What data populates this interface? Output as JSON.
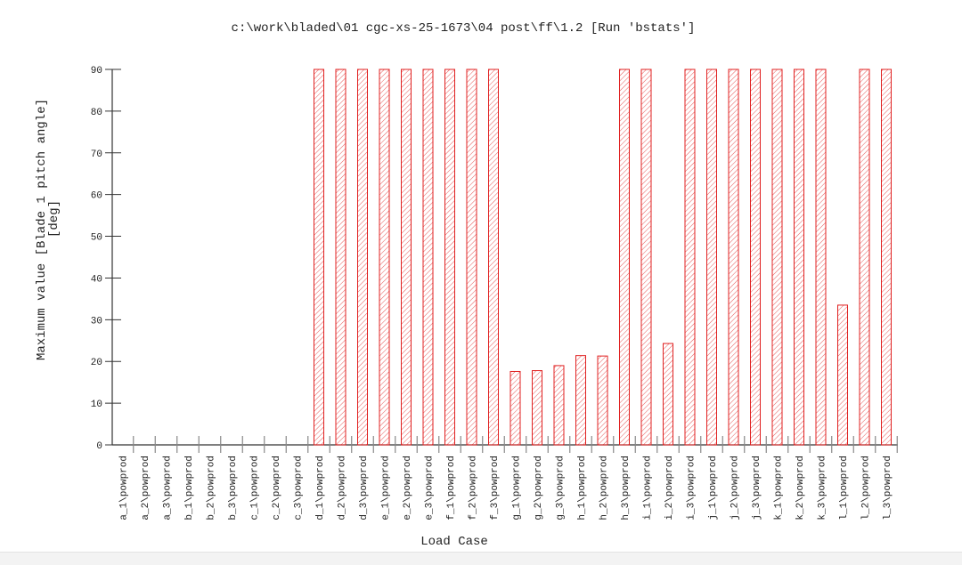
{
  "chart_data": {
    "type": "bar",
    "title": "c:\\work\\bladed\\01 cgc-xs-25-1673\\04 post\\ff\\1.2 [Run 'bstats']",
    "xlabel": "Load Case",
    "ylabel": "Maximum value [Blade 1 pitch angle]",
    "ylabel_unit": "[deg]",
    "ylim": [
      0,
      90
    ],
    "yticks": [
      0,
      10,
      20,
      30,
      40,
      50,
      60,
      70,
      80,
      90
    ],
    "grid": false,
    "bar_color": "#e02020",
    "bar_fill": "hatched",
    "categories": [
      "a_1\\powprod",
      "a_2\\powprod",
      "a_3\\powprod",
      "b_1\\powprod",
      "b_2\\powprod",
      "b_3\\powprod",
      "c_1\\powprod",
      "c_2\\powprod",
      "c_3\\powprod",
      "d_1\\powprod",
      "d_2\\powprod",
      "d_3\\powprod",
      "e_1\\powprod",
      "e_2\\powprod",
      "e_3\\powprod",
      "f_1\\powprod",
      "f_2\\powprod",
      "f_3\\powprod",
      "g_1\\powprod",
      "g_2\\powprod",
      "g_3\\powprod",
      "h_1\\powprod",
      "h_2\\powprod",
      "h_3\\powprod",
      "i_1\\powprod",
      "i_2\\powprod",
      "i_3\\powprod",
      "j_1\\powprod",
      "j_2\\powprod",
      "j_3\\powprod",
      "k_1\\powprod",
      "k_2\\powprod",
      "k_3\\powprod",
      "l_1\\powprod",
      "l_2\\powprod",
      "l_3\\powprod"
    ],
    "values": [
      0,
      0,
      0,
      0,
      0,
      0,
      0,
      0,
      0,
      90,
      90,
      90,
      90,
      90,
      90,
      90,
      90,
      90,
      17.6,
      17.8,
      19.0,
      21.4,
      21.3,
      90,
      90,
      24.3,
      90,
      90,
      90,
      90,
      90,
      90,
      90,
      33.5,
      90,
      90
    ]
  }
}
